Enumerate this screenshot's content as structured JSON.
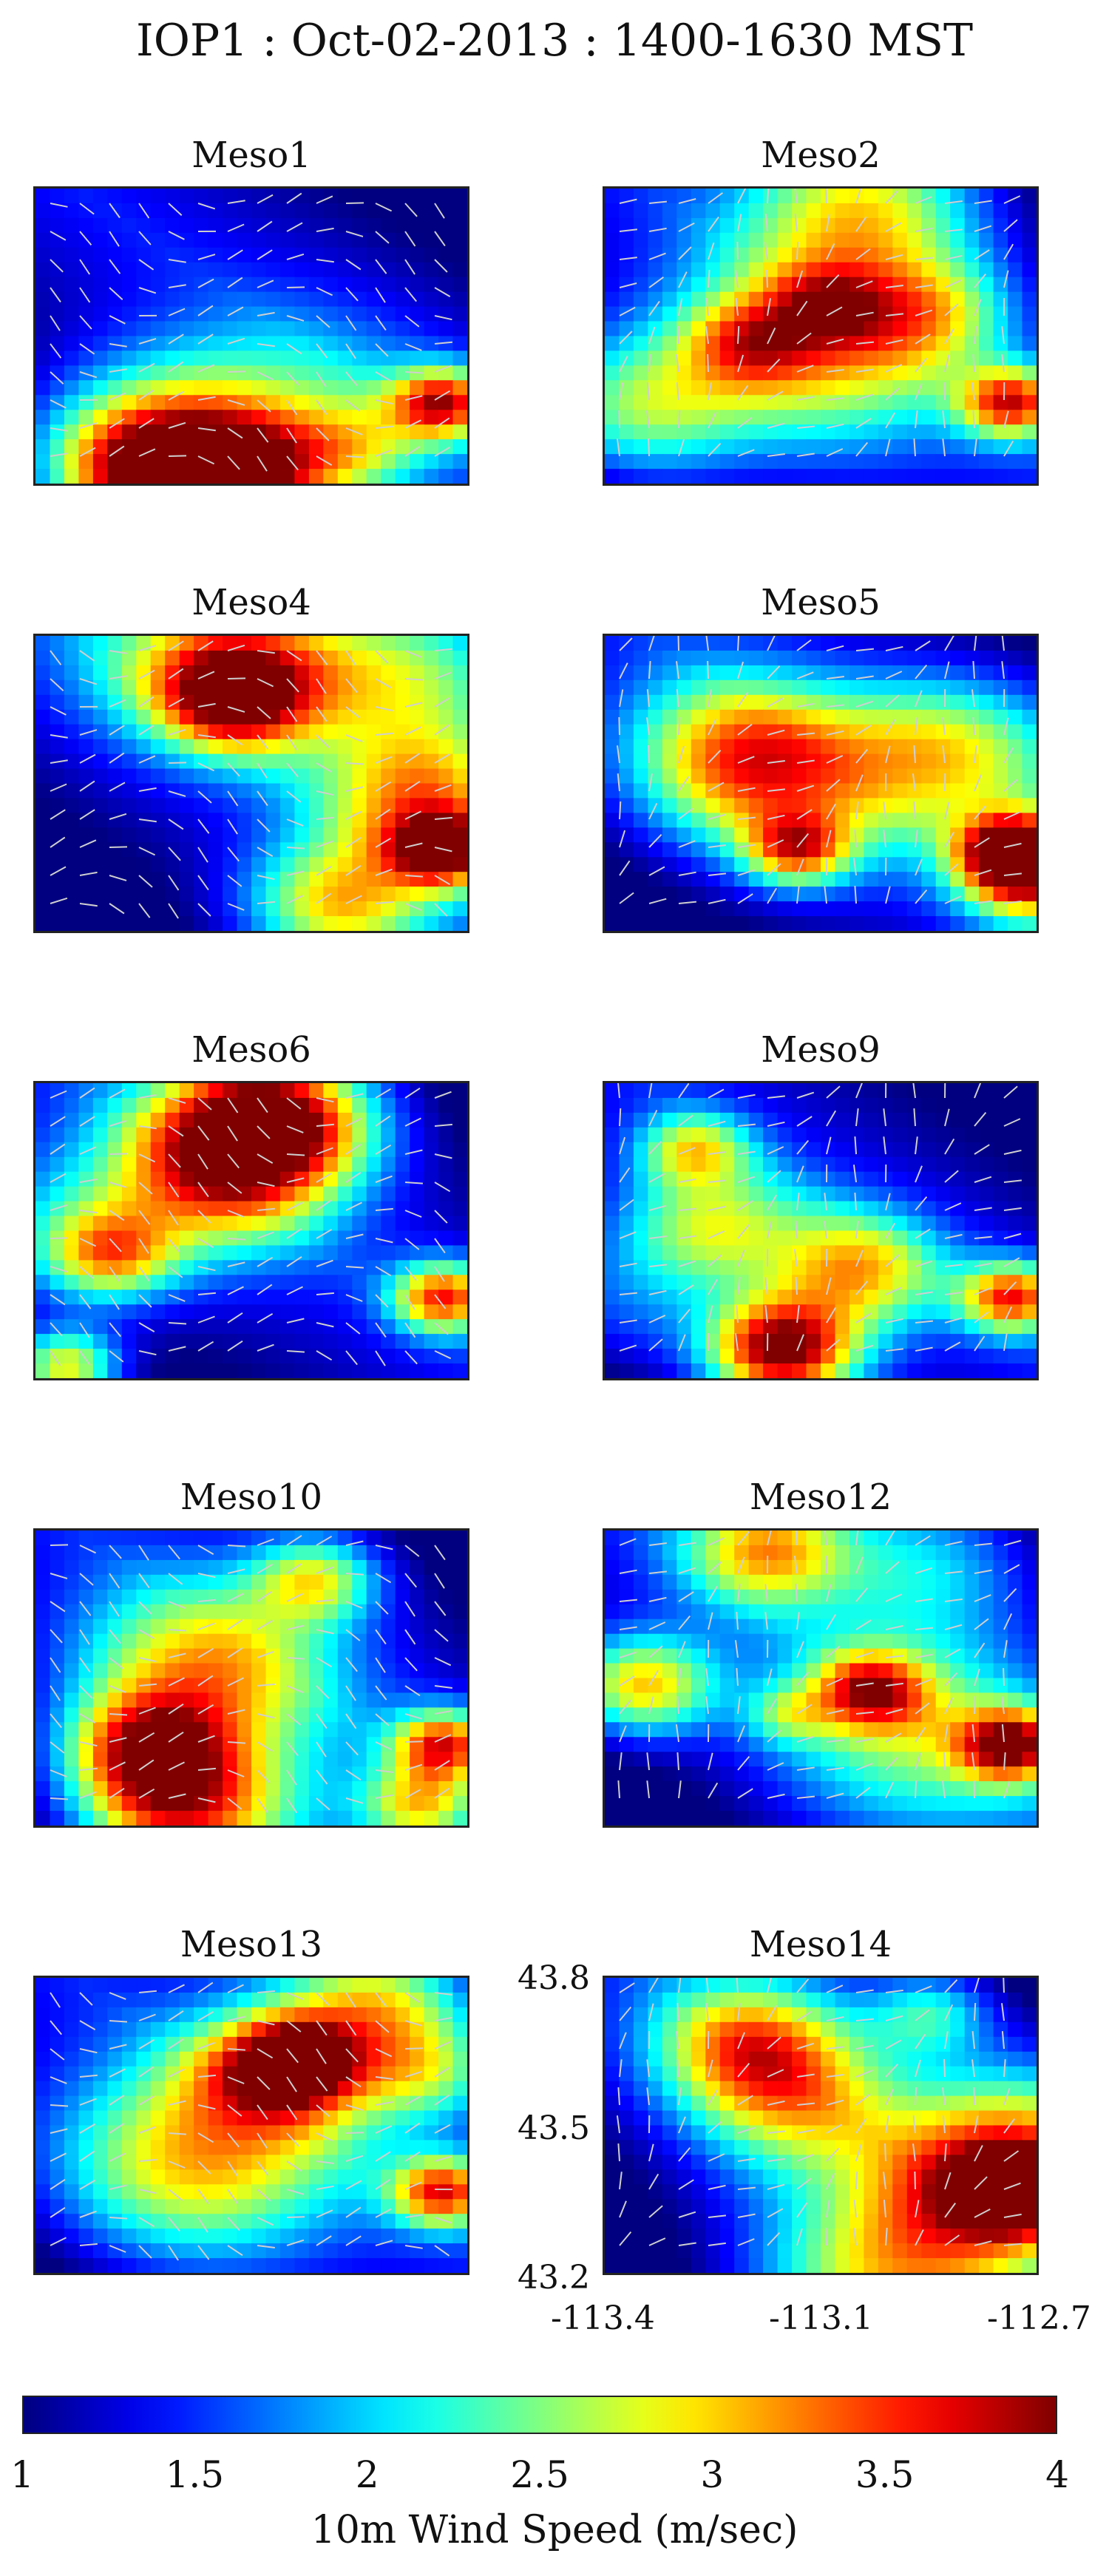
{
  "title": "IOP1 : Oct-02-2013 : 1400-1630 MST",
  "panels": [
    {
      "name": "Meso1"
    },
    {
      "name": "Meso2"
    },
    {
      "name": "Meso4"
    },
    {
      "name": "Meso5"
    },
    {
      "name": "Meso6"
    },
    {
      "name": "Meso9"
    },
    {
      "name": "Meso10"
    },
    {
      "name": "Meso12"
    },
    {
      "name": "Meso13"
    },
    {
      "name": "Meso14"
    }
  ],
  "axes": {
    "y_ticks": [
      "43.8",
      "43.5",
      "43.2"
    ],
    "x_ticks": [
      "-113.4",
      "-113.1",
      "-112.7"
    ]
  },
  "colorbar": {
    "ticks": [
      "1",
      "1.5",
      "2",
      "2.5",
      "3",
      "3.5",
      "4"
    ],
    "label": "10m Wind Speed (m/sec)",
    "range": [
      1,
      4
    ],
    "colormap": "jet"
  },
  "chart_data": {
    "type": "heatmap",
    "title": "IOP1 : Oct-02-2013 : 1400-1630 MST",
    "xlim": [
      -113.4,
      -112.7
    ],
    "ylim": [
      43.2,
      43.8
    ],
    "color_range": [
      1,
      4
    ],
    "grid": false,
    "legend": "colorbar bottom"
  }
}
